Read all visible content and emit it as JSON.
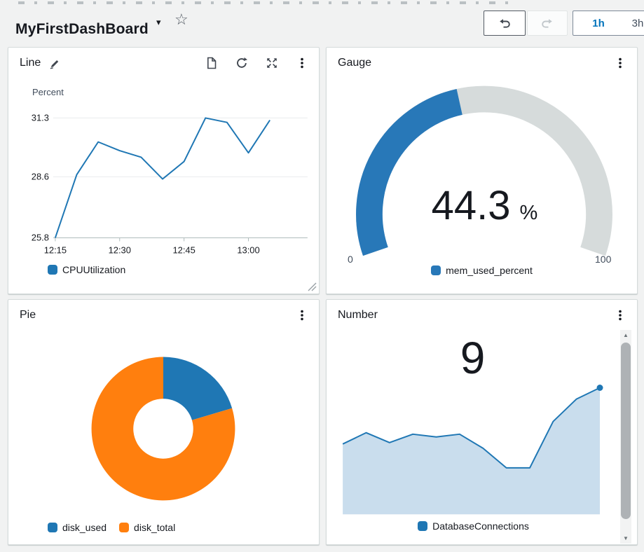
{
  "header": {
    "title": "MyFirstDashBoard",
    "time_ranges": [
      "1h",
      "3h"
    ],
    "selected_time_range": "1h"
  },
  "icons": {
    "caret": "▾",
    "star": "☆",
    "scroll_up": "▲",
    "scroll_down": "▼"
  },
  "widgets": {
    "line": {
      "title": "Line"
    },
    "gauge": {
      "title": "Gauge"
    },
    "pie": {
      "title": "Pie"
    },
    "number": {
      "title": "Number"
    }
  },
  "chart_data": [
    {
      "widget": "line",
      "type": "line",
      "title": "Line",
      "unit_label": "Percent",
      "x": [
        "12:15",
        "12:20",
        "12:25",
        "12:30",
        "12:35",
        "12:40",
        "12:45",
        "12:50",
        "12:55",
        "13:00",
        "13:05"
      ],
      "series": [
        {
          "name": "CPUUtilization",
          "color": "#1f77b4",
          "values": [
            25.8,
            28.7,
            30.2,
            29.8,
            29.5,
            28.5,
            29.3,
            31.3,
            31.1,
            29.7,
            31.2
          ]
        }
      ],
      "yticks": [
        25.8,
        28.6,
        31.3
      ],
      "xticks": [
        "12:15",
        "12:30",
        "12:45",
        "13:00"
      ],
      "ylim": [
        25.8,
        31.3
      ],
      "grid": true,
      "legend_position": "bottom"
    },
    {
      "widget": "gauge",
      "type": "gauge",
      "title": "Gauge",
      "value": 44.3,
      "value_text": "44.3",
      "unit": "%",
      "min": 0,
      "max": 100,
      "min_label": "0",
      "max_label": "100",
      "series_name": "mem_used_percent",
      "color": "#2878b8",
      "track_color": "#d6dbdb"
    },
    {
      "widget": "pie",
      "type": "pie",
      "title": "Pie",
      "slices": [
        {
          "name": "disk_used",
          "color": "#1f77b4",
          "fraction": 0.204
        },
        {
          "name": "disk_total",
          "color": "#ff7f0e",
          "fraction": 0.796
        }
      ],
      "donut": true,
      "legend_position": "bottom"
    },
    {
      "widget": "number",
      "type": "number",
      "title": "Number",
      "value": "9",
      "series_name": "DatabaseConnections",
      "color": "#1f77b4",
      "fill_color": "#c9dded",
      "spark_values": [
        5.0,
        5.8,
        5.1,
        5.7,
        5.5,
        5.7,
        4.7,
        3.3,
        3.3,
        6.6,
        8.2,
        9.0
      ],
      "spark_range": [
        0,
        10
      ]
    }
  ]
}
